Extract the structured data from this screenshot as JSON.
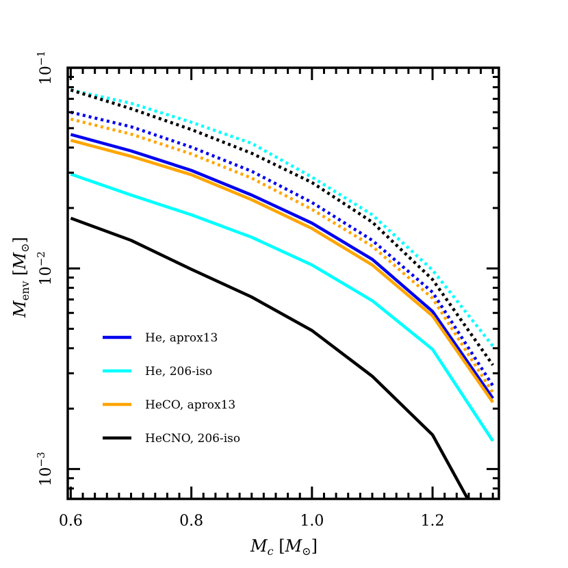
{
  "chart_data": {
    "type": "line",
    "xlabel": "M_c [M_⊙]",
    "ylabel": "M_env [M_⊙]",
    "xlim": [
      0.595,
      1.31
    ],
    "ylim": [
      0.00071,
      0.1
    ],
    "yscale": "log",
    "grid": false,
    "legend_position": "lower-left",
    "x_ticks": [
      0.6,
      0.8,
      1.0,
      1.2
    ],
    "x_tick_labels": [
      "0.6",
      "0.8",
      "1.0",
      "1.2"
    ],
    "y_ticks": [
      0.001,
      0.01,
      0.1
    ],
    "y_tick_labels": [
      "10⁻³",
      "10⁻²",
      "10⁻¹"
    ],
    "x": [
      0.6,
      0.7,
      0.8,
      0.9,
      1.0,
      1.1,
      1.2,
      1.3
    ],
    "series": [
      {
        "name": "He, aprox13",
        "color": "#0000ee",
        "style": "solid",
        "values": [
          0.0465,
          0.0385,
          0.0308,
          0.0232,
          0.0168,
          0.0111,
          0.0061,
          0.00225
        ]
      },
      {
        "name": "He, 206-iso",
        "color": "#00ffff",
        "style": "solid",
        "values": [
          0.0295,
          0.0232,
          0.0185,
          0.0143,
          0.0104,
          0.0069,
          0.00395,
          0.00138
        ]
      },
      {
        "name": "HeCO, aprox13",
        "color": "#ffa500",
        "style": "solid",
        "values": [
          0.0435,
          0.0362,
          0.0293,
          0.022,
          0.0158,
          0.0104,
          0.0058,
          0.00215
        ]
      },
      {
        "name": "HeCNO, 206-iso",
        "color": "#000000",
        "style": "solid",
        "values": [
          0.0178,
          0.0138,
          0.0099,
          0.0072,
          0.0049,
          0.0029,
          0.00148,
          0.00042
        ]
      },
      {
        "color": "#0000ee",
        "style": "dotted",
        "values": [
          0.06,
          0.0508,
          0.0402,
          0.0305,
          0.0213,
          0.0138,
          0.0076,
          0.0026
        ]
      },
      {
        "color": "#00ffff",
        "style": "dotted",
        "values": [
          0.0775,
          0.0665,
          0.0535,
          0.042,
          0.0285,
          0.0185,
          0.0098,
          0.0041
        ]
      },
      {
        "color": "#ffa500",
        "style": "dotted",
        "values": [
          0.0555,
          0.0467,
          0.0372,
          0.0282,
          0.0197,
          0.0129,
          0.0071,
          0.0024
        ]
      },
      {
        "color": "#000000",
        "style": "dotted",
        "values": [
          0.0775,
          0.0625,
          0.0492,
          0.0375,
          0.0268,
          0.017,
          0.0088,
          0.0033
        ]
      }
    ]
  }
}
